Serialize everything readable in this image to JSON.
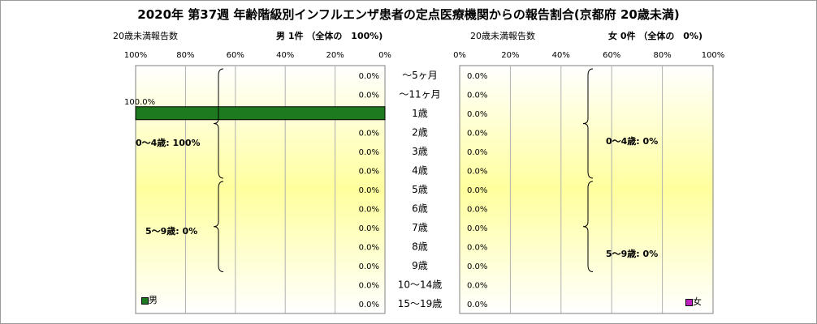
{
  "title": "2020年 第37週 年齢階級別インフルエンザ患者の定点医療機関からの報告割合(京都府 20歳未満)",
  "header": {
    "left_caption": "20歳未満報告数",
    "left_summary": "男 1件 （全体の　100%)",
    "right_caption": "20歳未満報告数",
    "right_summary": "女 0件 （全体の　0%)"
  },
  "colors": {
    "male": "#1e7a1e",
    "female": "#c020c0",
    "plot_gradient_top": "#ffffff",
    "plot_gradient_mid": "#ffff99",
    "grid": "#b0b0b0"
  },
  "groups": {
    "male": [
      {
        "label": "0～4歳: 100%"
      },
      {
        "label": "5～9歳: 0%"
      }
    ],
    "female": [
      {
        "label": "0～4歳: 0%"
      },
      {
        "label": "5～9歳: 0%"
      }
    ]
  },
  "chart_data": [
    {
      "type": "bar",
      "orientation": "horizontal",
      "direction": "right-to-left",
      "series": [
        {
          "name": "男",
          "values": [
            0,
            0,
            100,
            0,
            0,
            0,
            0,
            0,
            0,
            0,
            0,
            0,
            0
          ]
        }
      ],
      "categories": [
        "～5ヶ月",
        "～11ヶ月",
        "1歳",
        "2歳",
        "3歳",
        "4歳",
        "5歳",
        "6歳",
        "7歳",
        "8歳",
        "9歳",
        "10～14歳",
        "15～19歳"
      ],
      "data_labels": [
        "0.0%",
        "0.0%",
        "100.0%",
        "0.0%",
        "0.0%",
        "0.0%",
        "0.0%",
        "0.0%",
        "0.0%",
        "0.0%",
        "0.0%",
        "0.0%",
        "0.0%"
      ],
      "xlim": [
        0,
        100
      ],
      "ticks": [
        "100%",
        "80%",
        "60%",
        "40%",
        "20%",
        "0%"
      ],
      "grid": true,
      "legend": "bottom-left"
    },
    {
      "type": "bar",
      "orientation": "horizontal",
      "direction": "left-to-right",
      "series": [
        {
          "name": "女",
          "values": [
            0,
            0,
            0,
            0,
            0,
            0,
            0,
            0,
            0,
            0,
            0,
            0,
            0
          ]
        }
      ],
      "categories": [
        "～5ヶ月",
        "～11ヶ月",
        "1歳",
        "2歳",
        "3歳",
        "4歳",
        "5歳",
        "6歳",
        "7歳",
        "8歳",
        "9歳",
        "10～14歳",
        "15～19歳"
      ],
      "data_labels": [
        "0.0%",
        "0.0%",
        "0.0%",
        "0.0%",
        "0.0%",
        "0.0%",
        "0.0%",
        "0.0%",
        "0.0%",
        "0.0%",
        "0.0%",
        "0.0%",
        "0.0%"
      ],
      "xlim": [
        0,
        100
      ],
      "ticks": [
        "0%",
        "20%",
        "40%",
        "60%",
        "80%",
        "100%"
      ],
      "grid": true,
      "legend": "bottom-right"
    }
  ]
}
